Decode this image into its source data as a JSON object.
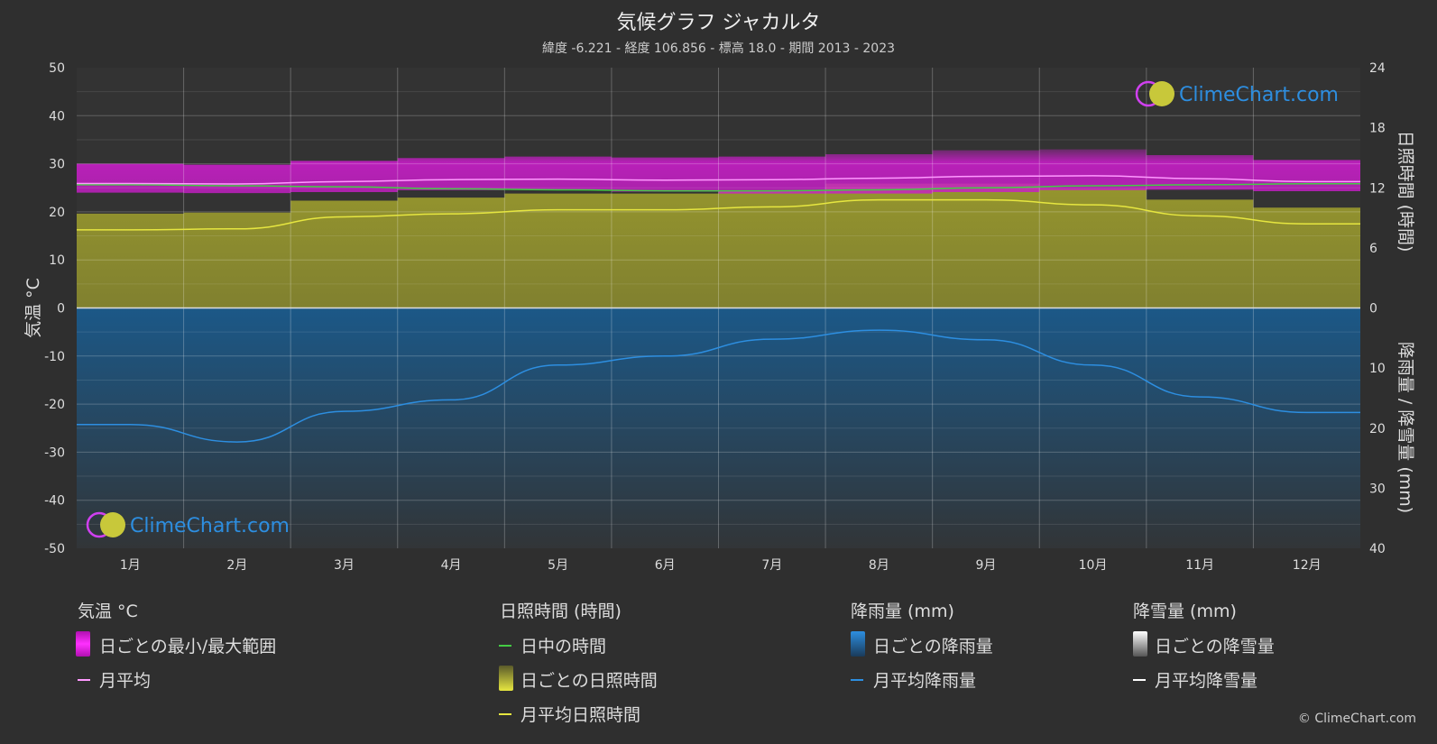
{
  "header": {
    "title": "気候グラフ ジャカルタ",
    "subtitle": "緯度 -6.221 - 経度 106.856 - 標高 18.0 - 期間 2013 - 2023"
  },
  "logo": {
    "text": "ClimeChart.com"
  },
  "copyright": "© ClimeChart.com",
  "legend": {
    "temperature": {
      "heading": "気温 °C",
      "range": "日ごとの最小/最大範囲",
      "avg": "月平均"
    },
    "sunshine": {
      "heading": "日照時間 (時間)",
      "daylight": "日中の時間",
      "daily": "日ごとの日照時間",
      "avg": "月平均日照時間"
    },
    "rain": {
      "heading": "降雨量 (mm)",
      "daily": "日ごとの降雨量",
      "avg": "月平均降雨量"
    },
    "snow": {
      "heading": "降雪量 (mm)",
      "daily": "日ごとの降雪量",
      "avg": "月平均降雪量"
    }
  },
  "chart_data": {
    "type": "line",
    "categories": [
      "1月",
      "2月",
      "3月",
      "4月",
      "5月",
      "6月",
      "7月",
      "8月",
      "9月",
      "10月",
      "11月",
      "12月"
    ],
    "y_left": {
      "label": "気温 °C",
      "range": [
        -50,
        50
      ],
      "ticks": [
        50,
        40,
        30,
        20,
        10,
        0,
        -10,
        -20,
        -30,
        -40,
        -50
      ]
    },
    "y_right_top": {
      "label": "日照時間 (時間)",
      "range": [
        0,
        24
      ],
      "ticks": [
        24,
        18,
        12,
        6,
        0
      ]
    },
    "y_right_bottom": {
      "label": "降雨量 / 降雪量 (mm)",
      "range": [
        0,
        40
      ],
      "ticks": [
        0,
        10,
        20,
        30,
        40
      ]
    },
    "grid": true,
    "colors": {
      "temp_range": "#c81ec8",
      "temp_avg": "#ff99ff",
      "daylight": "#44cc44",
      "sunshine_fill": "#9a9a2e",
      "sunshine_avg": "#e6e640",
      "rain_fill": "#1a5a8c",
      "rain_avg": "#2d8ee0",
      "snow_avg": "#ffffff"
    },
    "series": [
      {
        "name": "月平均",
        "axis": "temperature",
        "values": [
          25.9,
          25.8,
          26.3,
          26.7,
          26.8,
          26.6,
          26.7,
          27.0,
          27.4,
          27.5,
          26.9,
          26.3
        ]
      },
      {
        "name": "日ごとの最小/最大範囲",
        "axis": "temperature",
        "min": [
          24.0,
          23.9,
          24.1,
          24.5,
          24.6,
          24.2,
          23.8,
          23.8,
          24.1,
          24.5,
          24.6,
          24.3
        ],
        "max": [
          30.0,
          29.8,
          30.6,
          31.2,
          31.5,
          31.3,
          31.5,
          32.0,
          32.8,
          33.0,
          31.8,
          30.8
        ]
      },
      {
        "name": "日中の時間",
        "axis": "sunshine",
        "values": [
          12.3,
          12.2,
          12.1,
          11.9,
          11.8,
          11.7,
          11.7,
          11.8,
          12.0,
          12.2,
          12.3,
          12.4
        ]
      },
      {
        "name": "月平均日照時間",
        "axis": "sunshine",
        "values": [
          7.8,
          7.9,
          9.1,
          9.4,
          9.8,
          9.8,
          10.1,
          10.8,
          10.8,
          10.3,
          9.2,
          8.4
        ]
      },
      {
        "name": "月平均降雨量",
        "axis": "rain",
        "values": [
          19.4,
          22.3,
          17.2,
          15.3,
          9.5,
          8.0,
          5.2,
          3.7,
          5.3,
          9.5,
          14.8,
          17.4
        ]
      },
      {
        "name": "月平均降雪量",
        "axis": "snow",
        "values": [
          0,
          0,
          0,
          0,
          0,
          0,
          0,
          0,
          0,
          0,
          0,
          0
        ]
      }
    ]
  }
}
